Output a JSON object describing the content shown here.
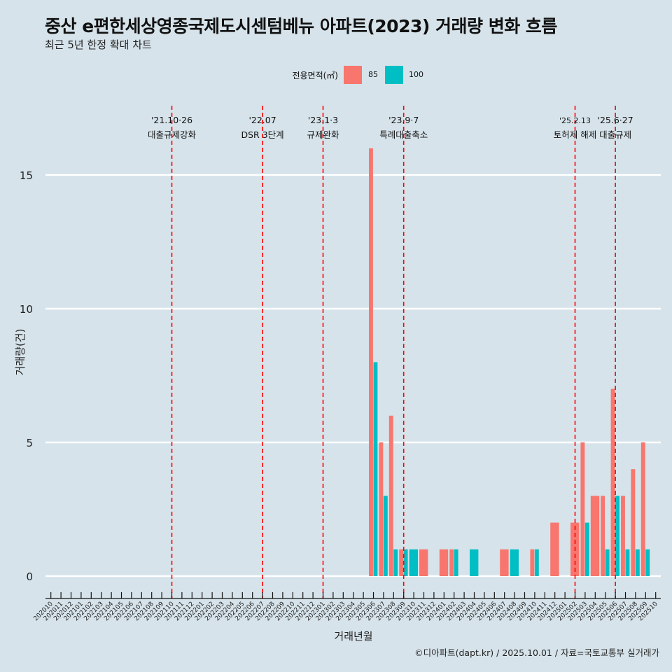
{
  "title": "중산 e편한세상영종국제도시센텀베뉴 아파트(2023) 거래량 변화 흐름",
  "subtitle": "최근 5년 한정 확대 차트",
  "caption": "©디아파트(dapt.kr) / 2025.10.01 / 자료=국토교통부 실거래가",
  "legend": {
    "title": "전용면적(㎡)",
    "items": [
      {
        "label": "85",
        "color": "#f8766d"
      },
      {
        "label": "100",
        "color": "#00bfc4"
      }
    ]
  },
  "chart_data": {
    "type": "bar",
    "title": "중산 e편한세상영종국제도시센텀베뉴 아파트(2023) 거래량 변화 흐름",
    "subtitle": "최근 5년 한정 확대 차트",
    "xlabel": "거래년월",
    "ylabel": "거래량(건)",
    "ylim": [
      0,
      17.5
    ],
    "yticks": [
      0,
      5,
      10,
      15
    ],
    "grid": "horizontal major only",
    "legend_position": "top",
    "categories": [
      "202010",
      "202011",
      "202012",
      "202101",
      "202102",
      "202103",
      "202104",
      "202105",
      "202106",
      "202107",
      "202108",
      "202109",
      "202110",
      "202111",
      "202112",
      "202201",
      "202202",
      "202203",
      "202204",
      "202205",
      "202206",
      "202207",
      "202208",
      "202209",
      "202210",
      "202211",
      "202212",
      "202301",
      "202302",
      "202303",
      "202304",
      "202305",
      "202306",
      "202307",
      "202308",
      "202309",
      "202310",
      "202311",
      "202312",
      "202401",
      "202402",
      "202403",
      "202404",
      "202405",
      "202406",
      "202407",
      "202408",
      "202409",
      "202410",
      "202411",
      "202412",
      "202501",
      "202502",
      "202503",
      "202504",
      "202505",
      "202506",
      "202507",
      "202508",
      "202509",
      "202510"
    ],
    "series": [
      {
        "name": "85",
        "color": "#f8766d",
        "values": {
          "202306": 16,
          "202307": 5,
          "202308": 6,
          "202309": 1,
          "202311": 1,
          "202401": 1,
          "202402": 1,
          "202407": 1,
          "202410": 1,
          "202412": 2,
          "202502": 2,
          "202503": 5,
          "202504": 3,
          "202505": 3,
          "202506": 7,
          "202507": 3,
          "202508": 4,
          "202509": 5
        }
      },
      {
        "name": "100",
        "color": "#00bfc4",
        "values": {
          "202306": 8,
          "202307": 3,
          "202308": 1,
          "202309": 1,
          "202310": 1,
          "202402": 1,
          "202404": 1,
          "202408": 1,
          "202410": 1,
          "202503": 2,
          "202505": 1,
          "202506": 3,
          "202507": 1,
          "202508": 1,
          "202509": 1
        }
      }
    ],
    "annotations": [
      {
        "month": "202110",
        "date": "'21.10·26",
        "label": "대출규제강화"
      },
      {
        "month": "202207",
        "date": "'22.07",
        "label": "DSR 3단계"
      },
      {
        "month": "202301",
        "date": "'23.1·3",
        "label": "규제완화"
      },
      {
        "month": "202309",
        "date": "'23.9·7",
        "label": "특례대출축소"
      },
      {
        "month": "202502",
        "date": "'25.2.13",
        "label": "토허제 해제",
        "small": true
      },
      {
        "month": "202506",
        "date": "'25.6·27",
        "label": "대출규제"
      }
    ],
    "annotation_line_color": "#ff0000"
  }
}
